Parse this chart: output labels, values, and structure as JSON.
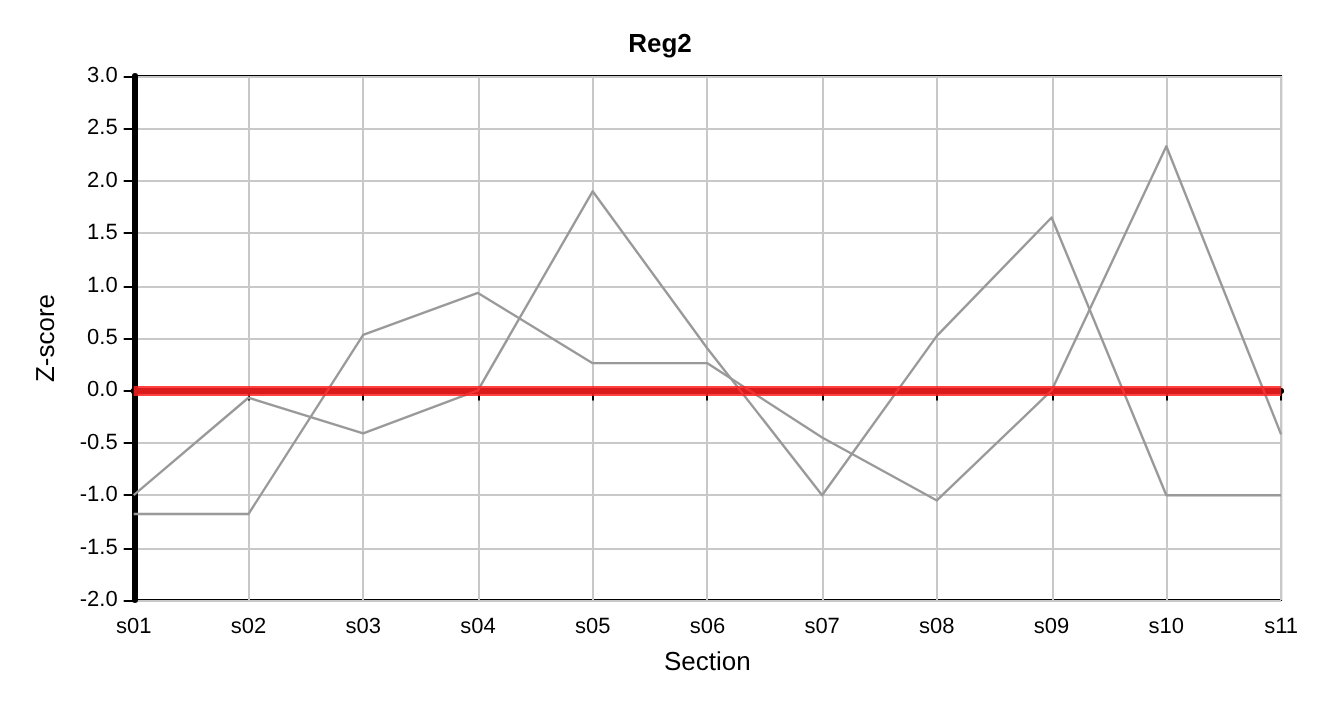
{
  "chart_data": {
    "type": "line",
    "title": "Reg2",
    "xlabel": "Section",
    "ylabel": "Z-score",
    "categories": [
      "s01",
      "s02",
      "s03",
      "s04",
      "s05",
      "s06",
      "s07",
      "s08",
      "s09",
      "s10",
      "s11"
    ],
    "series": [
      {
        "color": "#999999",
        "values": [
          -1.0,
          -0.07,
          -0.41,
          0.0,
          1.9,
          0.4,
          -1.0,
          0.52,
          1.65,
          -1.0,
          -1.0
        ]
      },
      {
        "color": "#999999",
        "values": [
          -1.18,
          -1.18,
          0.53,
          0.93,
          0.26,
          0.26,
          -0.45,
          -1.05,
          0.0,
          2.33,
          -0.42
        ]
      }
    ],
    "ylim": [
      -2,
      3
    ],
    "yticks": [
      {
        "value": -2,
        "label": "-2.0"
      },
      {
        "value": -1.5,
        "label": "-1.5"
      },
      {
        "value": -1,
        "label": "-1.0"
      },
      {
        "value": -0.5,
        "label": "-0.5"
      },
      {
        "value": 0,
        "label": "0.0"
      },
      {
        "value": 0.5,
        "label": "0.5"
      },
      {
        "value": 1,
        "label": "1.0"
      },
      {
        "value": 1.5,
        "label": "1.5"
      },
      {
        "value": 2,
        "label": "2.0"
      },
      {
        "value": 2.5,
        "label": "2.5"
      },
      {
        "value": 3,
        "label": "3.0"
      }
    ],
    "ref_lines": [
      {
        "axis": "y",
        "value": 0,
        "color": "#ff2020"
      }
    ],
    "grid": true,
    "marker": "none",
    "line_style": "solid"
  }
}
